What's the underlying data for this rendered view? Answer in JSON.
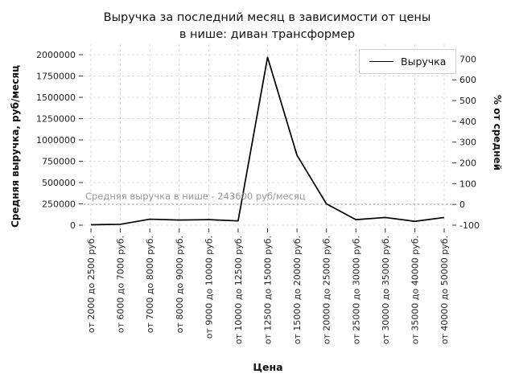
{
  "chart_data": {
    "type": "line",
    "title": "Выручка за последний месяц в зависимости от цены\nв нише: диван трансформер",
    "xlabel": "Цена",
    "ylabel": "Средняя выручка, руб/месяц",
    "ylabel_right": "% от средней",
    "categories": [
      "от 2000 до 2500 руб.",
      "от 6000 до 7000 руб.",
      "от 7000 до 8000 руб.",
      "от 8000 до 9000 руб.",
      "от 9000 до 10000 руб.",
      "от 10000 до 12500 руб.",
      "от 12500 до 15000 руб.",
      "от 15000 до 20000 руб.",
      "от 20000 до 25000 руб.",
      "от 25000 до 30000 руб.",
      "от 30000 до 35000 руб.",
      "от 35000 до 40000 руб.",
      "от 40000 до 50000 руб."
    ],
    "series": [
      {
        "name": "Выручка",
        "color": "#000000",
        "values": [
          5000,
          10000,
          70000,
          60000,
          65000,
          50000,
          1970000,
          820000,
          250000,
          65000,
          90000,
          45000,
          90000
        ]
      }
    ],
    "ylim": [
      0,
      2000000
    ],
    "yticks_left": [
      0,
      250000,
      500000,
      750000,
      1000000,
      1250000,
      1500000,
      1750000,
      2000000
    ],
    "yticks_right": [
      -100,
      0,
      100,
      200,
      300,
      400,
      500,
      600,
      700
    ],
    "annotation": {
      "text": "Средняя выручка в нише - 243600 руб/месяц",
      "value": 243600
    },
    "grid": true,
    "legend_position": "upper right"
  }
}
